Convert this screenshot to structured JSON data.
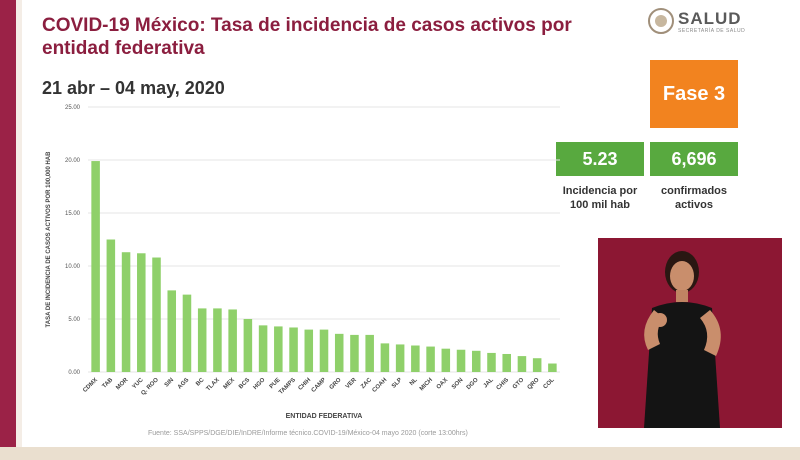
{
  "header": {
    "title": "COVID-19 México: Tasa de incidencia de casos activos por entidad federativa",
    "date_range": "21 abr – 04 may, 2020"
  },
  "logo": {
    "text": "SALUD",
    "sub": "SECRETARÍA DE SALUD"
  },
  "phase": {
    "label": "Fase 3",
    "color": "#f2831f"
  },
  "stats": [
    {
      "value": "5.23",
      "label_line1": "Incidencia por",
      "label_line2": "100 mil hab"
    },
    {
      "value": "6,696",
      "label_line1": "confirmados",
      "label_line2": "activos"
    }
  ],
  "source": "Fuente: SSA/SPPS/DGE/DIE/InDRE/Informe técnico.COVID-19/México-04 mayo 2020 (corte 13:00hrs)",
  "colors": {
    "bar": "#8fd06a",
    "accent": "#8b1e3f",
    "grid": "#e4e4e4"
  },
  "chart_data": {
    "type": "bar",
    "title": "",
    "xlabel": "ENTIDAD FEDERATIVA",
    "ylabel": "TASA DE INCIDENCIA DE CASOS ACTIVOS POR 100,000 HAB",
    "ylim": [
      0,
      25
    ],
    "yticks": [
      "0.00",
      "5.00",
      "10.00",
      "15.00",
      "20.00",
      "25.00"
    ],
    "grid": true,
    "categories": [
      "CDMX",
      "TAB",
      "MOR",
      "YUC",
      "Q. ROO",
      "SIN",
      "AGS",
      "BC",
      "TLAX",
      "MEX",
      "BCS",
      "HGO",
      "PUE",
      "TAMPS",
      "CHIH",
      "CAMP",
      "GRO",
      "VER",
      "ZAC",
      "COAH",
      "SLP",
      "NL",
      "MICH",
      "OAX",
      "SON",
      "DGO",
      "JAL",
      "CHIS",
      "GTO",
      "QRO",
      "COL"
    ],
    "values": [
      19.9,
      12.5,
      11.3,
      11.2,
      10.8,
      7.7,
      7.3,
      6.0,
      6.0,
      5.9,
      5.0,
      4.4,
      4.3,
      4.2,
      4.0,
      4.0,
      3.6,
      3.5,
      3.5,
      2.7,
      2.6,
      2.5,
      2.4,
      2.2,
      2.1,
      2.0,
      1.8,
      1.7,
      1.5,
      1.3,
      0.8
    ]
  }
}
